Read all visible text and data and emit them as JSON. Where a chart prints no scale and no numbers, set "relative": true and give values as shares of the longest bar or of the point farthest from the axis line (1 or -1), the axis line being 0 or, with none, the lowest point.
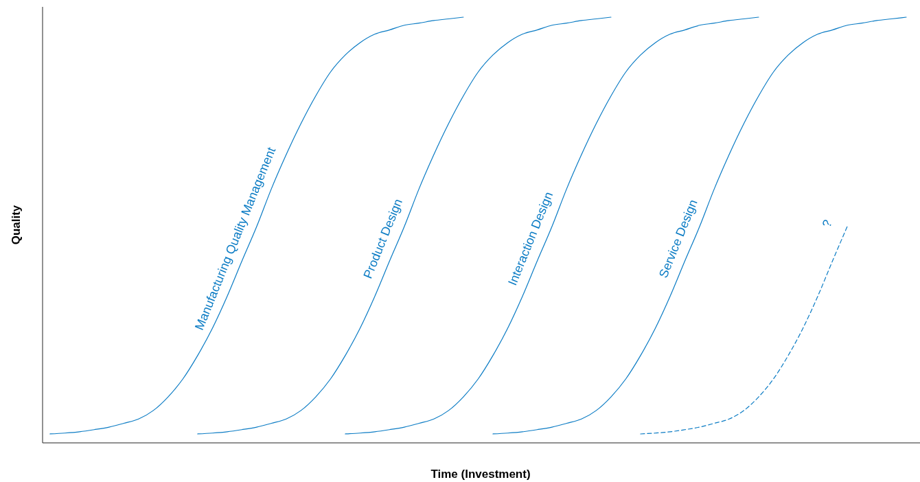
{
  "chart_data": {
    "type": "line",
    "relative": true,
    "xlabel": "Time (Investment)",
    "ylabel": "Quality",
    "categories": [
      null,
      null,
      null,
      null,
      null,
      null,
      null,
      null,
      null,
      null,
      null,
      null,
      null,
      null,
      null,
      null,
      null,
      null,
      null,
      null,
      null,
      null,
      null,
      null,
      null,
      null,
      null,
      null,
      null,
      null,
      null,
      null,
      null,
      null,
      null,
      null,
      null,
      null,
      null,
      null,
      null,
      null,
      null,
      null,
      null,
      null,
      null,
      null,
      null,
      null,
      null,
      null,
      null,
      null,
      null,
      null,
      null,
      null,
      null
    ],
    "series": [
      {
        "name": "Manufacturing Quality Management",
        "color": "#0a7bc4",
        "line_style": "solid",
        "values": [
          0.021,
          0.023,
          0.026,
          0.031,
          0.037,
          0.046,
          0.056,
          0.076,
          0.108,
          0.15,
          0.205,
          0.269,
          0.344,
          0.427,
          0.508,
          0.597,
          0.677,
          0.75,
          0.815,
          0.871,
          0.911,
          0.94,
          0.96,
          0.97,
          0.981,
          0.986,
          0.992,
          0.996,
          1,
          null,
          null,
          null,
          null,
          null,
          null,
          null,
          null,
          null,
          null,
          null,
          null,
          null,
          null,
          null,
          null,
          null,
          null,
          null,
          null,
          null,
          null,
          null,
          null,
          null,
          null,
          null,
          null,
          null,
          null
        ]
      },
      {
        "name": "Product Design",
        "color": "#0a7bc4",
        "line_style": "solid",
        "values": [
          null,
          null,
          null,
          null,
          null,
          null,
          null,
          null,
          null,
          null,
          0.021,
          0.023,
          0.026,
          0.031,
          0.037,
          0.046,
          0.056,
          0.076,
          0.108,
          0.15,
          0.205,
          0.269,
          0.344,
          0.427,
          0.508,
          0.597,
          0.677,
          0.75,
          0.815,
          0.871,
          0.911,
          0.94,
          0.96,
          0.97,
          0.981,
          0.986,
          0.992,
          0.996,
          1,
          null,
          null,
          null,
          null,
          null,
          null,
          null,
          null,
          null,
          null,
          null,
          null,
          null,
          null,
          null,
          null,
          null,
          null,
          null,
          null
        ]
      },
      {
        "name": "Interaction Design",
        "color": "#0a7bc4",
        "line_style": "solid",
        "values": [
          null,
          null,
          null,
          null,
          null,
          null,
          null,
          null,
          null,
          null,
          null,
          null,
          null,
          null,
          null,
          null,
          null,
          null,
          null,
          null,
          0.021,
          0.023,
          0.026,
          0.031,
          0.037,
          0.046,
          0.056,
          0.076,
          0.108,
          0.15,
          0.205,
          0.269,
          0.344,
          0.427,
          0.508,
          0.597,
          0.677,
          0.75,
          0.815,
          0.871,
          0.911,
          0.94,
          0.96,
          0.97,
          0.981,
          0.986,
          0.992,
          0.996,
          1,
          null,
          null,
          null,
          null,
          null,
          null,
          null,
          null,
          null,
          null
        ]
      },
      {
        "name": "Service Design",
        "color": "#0a7bc4",
        "line_style": "solid",
        "values": [
          null,
          null,
          null,
          null,
          null,
          null,
          null,
          null,
          null,
          null,
          null,
          null,
          null,
          null,
          null,
          null,
          null,
          null,
          null,
          null,
          null,
          null,
          null,
          null,
          null,
          null,
          null,
          null,
          null,
          null,
          0.021,
          0.023,
          0.026,
          0.031,
          0.037,
          0.046,
          0.056,
          0.076,
          0.108,
          0.15,
          0.205,
          0.269,
          0.344,
          0.427,
          0.508,
          0.597,
          0.677,
          0.75,
          0.815,
          0.871,
          0.911,
          0.94,
          0.96,
          0.97,
          0.981,
          0.986,
          0.992,
          0.996,
          1
        ]
      },
      {
        "name": "?",
        "color": "#0a7bc4",
        "line_style": "dashed",
        "values": [
          null,
          null,
          null,
          null,
          null,
          null,
          null,
          null,
          null,
          null,
          null,
          null,
          null,
          null,
          null,
          null,
          null,
          null,
          null,
          null,
          null,
          null,
          null,
          null,
          null,
          null,
          null,
          null,
          null,
          null,
          null,
          null,
          null,
          null,
          null,
          null,
          null,
          null,
          null,
          null,
          0.021,
          0.023,
          0.026,
          0.031,
          0.037,
          0.046,
          0.056,
          0.076,
          0.108,
          0.15,
          0.205,
          0.269,
          0.344,
          0.427,
          0.508,
          null,
          null,
          null,
          null
        ]
      }
    ]
  }
}
